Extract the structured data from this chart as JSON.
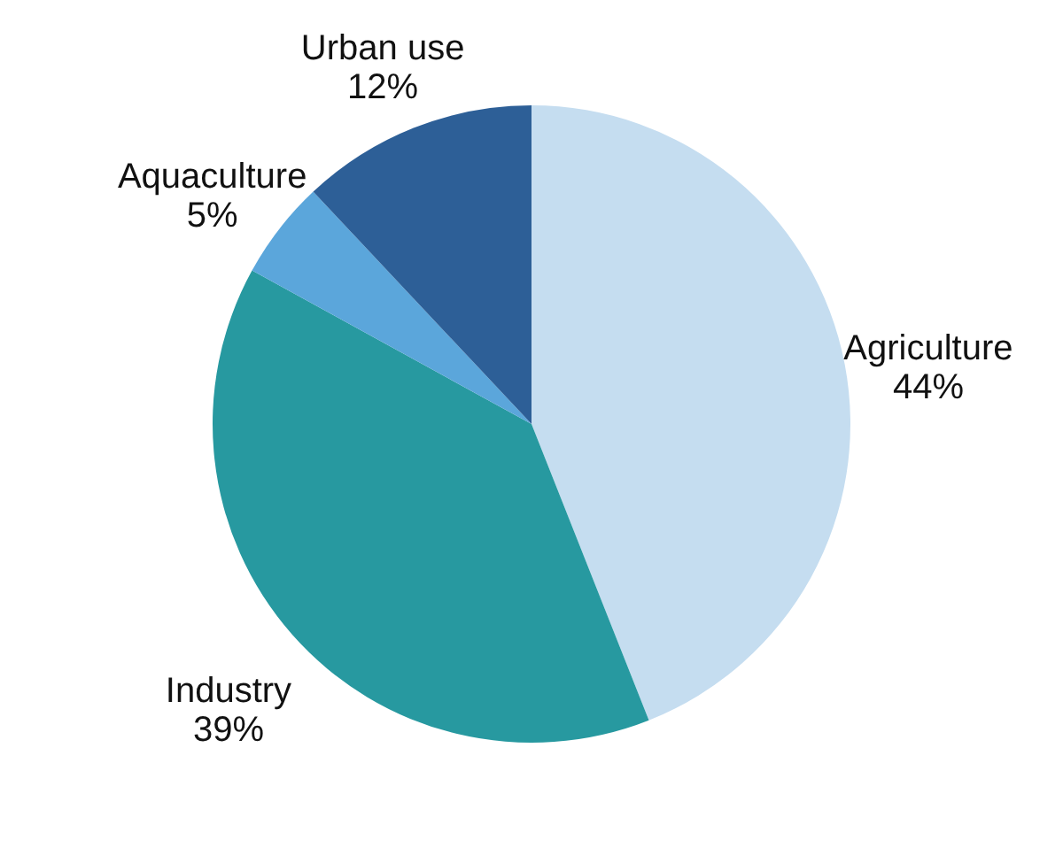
{
  "chart_data": {
    "type": "pie",
    "categories": [
      "Agriculture",
      "Industry",
      "Aquaculture",
      "Urban use"
    ],
    "values": [
      44,
      39,
      5,
      12
    ],
    "value_labels": [
      "44%",
      "39%",
      "5%",
      "12%"
    ],
    "colors": [
      "#c5ddf0",
      "#2799a0",
      "#5ba6db",
      "#2d5f97"
    ],
    "legend": false
  }
}
